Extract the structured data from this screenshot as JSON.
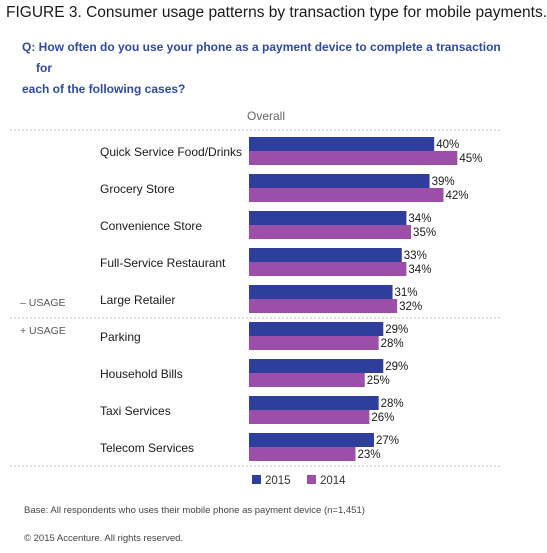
{
  "figure_title": "FIGURE 3. Consumer usage patterns by transaction type for mobile payments.",
  "question_line1": "Q: How often do you use your phone as a payment device to complete a transaction for",
  "question_line2": "each of the following cases?",
  "base_note": "Base: All respondents who uses their mobile phone as payment device (n=1,451)",
  "copyright": "© 2015 Accenture. All rights reserved.",
  "colors": {
    "s2015": "#2e3e9c",
    "s2014": "#9c4fa8",
    "divider": "#bfbfbf"
  },
  "chart_data": {
    "type": "bar",
    "orientation": "horizontal",
    "column_header": "Overall",
    "categories": [
      "Quick Service Food/Drinks",
      "Grocery Store",
      "Convenience Store",
      "Full-Service Restaurant",
      "Large Retailer",
      "Parking",
      "Household Bills",
      "Taxi Services",
      "Telecom Services"
    ],
    "series": [
      {
        "name": "2015",
        "values": [
          40,
          39,
          34,
          33,
          31,
          29,
          29,
          28,
          27
        ],
        "labels": [
          "40%",
          "39%",
          "34%",
          "33%",
          "31%",
          "29%",
          "29%",
          "28%",
          "27%"
        ]
      },
      {
        "name": "2014",
        "values": [
          45,
          42,
          35,
          34,
          32,
          28,
          25,
          26,
          23
        ],
        "labels": [
          "45%",
          "42%",
          "35%",
          "34%",
          "32%",
          "28%",
          "25%",
          "26%",
          "23%"
        ]
      }
    ],
    "usage_minus": "– USAGE",
    "usage_plus": "+ USAGE",
    "legend": [
      "2015",
      "2014"
    ],
    "legend_placement": "bottom",
    "grid": false
  }
}
